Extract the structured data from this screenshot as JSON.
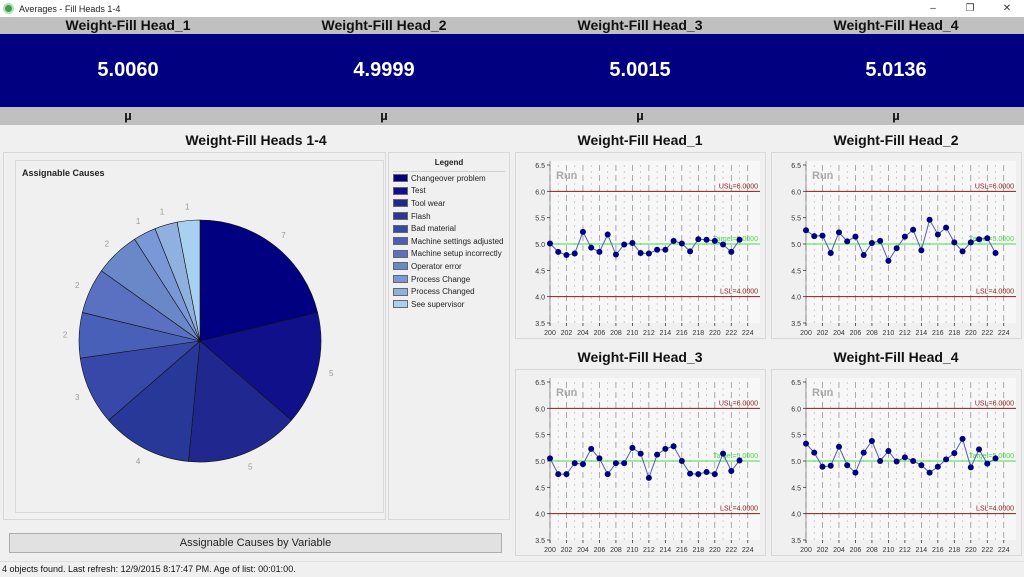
{
  "window": {
    "title": "Averages - Fill Heads 1-4",
    "controls": {
      "minimize": "–",
      "maximize": "❐",
      "close": "✕"
    }
  },
  "summary": {
    "heads": [
      {
        "name": "Weight-Fill Head_1",
        "value": "5.0060",
        "symbol": "µ"
      },
      {
        "name": "Weight-Fill Head_2",
        "value": "4.9999",
        "symbol": "µ"
      },
      {
        "name": "Weight-Fill Head_3",
        "value": "5.0015",
        "symbol": "µ"
      },
      {
        "name": "Weight-Fill Head_4",
        "value": "5.0136",
        "symbol": "µ"
      }
    ],
    "value_bg": "#000080"
  },
  "pie_title": "Weight-Fill Heads 1-4",
  "button_label": "Assignable Causes by Variable",
  "status": "4 objects found.  Last refresh: 12/9/2015 8:17:47 PM.  Age of list: 00:01:00.",
  "chart_data": [
    {
      "type": "pie",
      "title": "Assignable Causes",
      "legend_title": "Legend",
      "legend_position": "right",
      "categories": [
        "Changeover problem",
        "Test",
        "Tool wear",
        "Flash",
        "Bad material",
        "Machine settings adjusted",
        "Machine setup incorrectly",
        "Operator error",
        "Process Change",
        "Process Changed",
        "See supervisor"
      ],
      "values": [
        7,
        5,
        5,
        4,
        3,
        2,
        2,
        2,
        1,
        1,
        1
      ],
      "colors": [
        "#000080",
        "#10108a",
        "#202890",
        "#283898",
        "#3848a8",
        "#4860b8",
        "#5a70c0",
        "#6a88c8",
        "#7a98d8",
        "#90b0e0",
        "#a8d0f0"
      ]
    },
    {
      "type": "line",
      "title": "Weight-Fill Head_1",
      "annotation": "Run",
      "x": [
        200,
        201,
        202,
        203,
        204,
        205,
        206,
        207,
        208,
        209,
        210,
        211,
        212,
        213,
        214,
        215,
        216,
        217,
        218,
        219,
        220,
        221,
        222,
        223
      ],
      "values": [
        5.01,
        4.85,
        4.79,
        4.82,
        5.23,
        4.93,
        4.85,
        5.18,
        4.8,
        4.99,
        5.02,
        4.83,
        4.82,
        4.89,
        4.89,
        5.06,
        5.01,
        4.86,
        5.09,
        5.08,
        5.06,
        4.99,
        4.85,
        5.08
      ],
      "usl": 6.0,
      "lsl": 4.0,
      "target": 5.0,
      "usl_label": "USL=6.0000",
      "lsl_label": "LSL=4.0000",
      "target_label": "Target=5.0000",
      "xlim": [
        200,
        225
      ],
      "ylim": [
        3.5,
        6.5
      ],
      "xticks": [
        "200",
        "202",
        "204",
        "206",
        "208",
        "210",
        "212",
        "214",
        "216",
        "218",
        "220",
        "222",
        "224"
      ],
      "yticks": [
        "3.5",
        "4.0",
        "4.5",
        "5.0",
        "5.5",
        "6.0",
        "6.5"
      ]
    },
    {
      "type": "line",
      "title": "Weight-Fill Head_2",
      "annotation": "Run",
      "x": [
        200,
        201,
        202,
        203,
        204,
        205,
        206,
        207,
        208,
        209,
        210,
        211,
        212,
        213,
        214,
        215,
        216,
        217,
        218,
        219,
        220,
        221,
        222,
        223
      ],
      "values": [
        5.26,
        5.15,
        5.16,
        4.83,
        5.22,
        5.05,
        5.14,
        4.79,
        5.02,
        5.06,
        4.68,
        4.92,
        5.14,
        5.27,
        4.88,
        5.46,
        5.18,
        5.31,
        5.03,
        4.86,
        5.03,
        5.09,
        5.11,
        4.83
      ],
      "usl": 6.0,
      "lsl": 4.0,
      "target": 5.0,
      "usl_label": "USL=6.0000",
      "lsl_label": "LSL=4.0000",
      "target_label": "Target=5.0000",
      "xlim": [
        200,
        225
      ],
      "ylim": [
        3.5,
        6.5
      ],
      "xticks": [
        "200",
        "202",
        "204",
        "206",
        "208",
        "210",
        "212",
        "214",
        "216",
        "218",
        "220",
        "222",
        "224"
      ],
      "yticks": [
        "3.5",
        "4.0",
        "4.5",
        "5.0",
        "5.5",
        "6.0",
        "6.5"
      ]
    },
    {
      "type": "line",
      "title": "Weight-Fill Head_3",
      "annotation": "Run",
      "x": [
        200,
        201,
        202,
        203,
        204,
        205,
        206,
        207,
        208,
        209,
        210,
        211,
        212,
        213,
        214,
        215,
        216,
        217,
        218,
        219,
        220,
        221,
        222,
        223
      ],
      "values": [
        5.05,
        4.75,
        4.75,
        4.96,
        4.94,
        5.23,
        5.05,
        4.75,
        4.96,
        4.96,
        5.25,
        5.14,
        4.68,
        5.12,
        5.23,
        5.28,
        5.0,
        4.76,
        4.75,
        4.79,
        4.75,
        5.14,
        4.81,
        5.01
      ],
      "usl": 6.0,
      "lsl": 4.0,
      "target": 5.0,
      "usl_label": "USL=6.0000",
      "lsl_label": "LSL=4.0000",
      "target_label": "Target=5.0000",
      "xlim": [
        200,
        225
      ],
      "ylim": [
        3.5,
        6.5
      ],
      "xticks": [
        "200",
        "202",
        "204",
        "206",
        "208",
        "210",
        "212",
        "214",
        "216",
        "218",
        "220",
        "222",
        "224"
      ],
      "yticks": [
        "3.5",
        "4.0",
        "4.5",
        "5.0",
        "5.5",
        "6.0",
        "6.5"
      ]
    },
    {
      "type": "line",
      "title": "Weight-Fill Head_4",
      "annotation": "Run",
      "x": [
        200,
        201,
        202,
        203,
        204,
        205,
        206,
        207,
        208,
        209,
        210,
        211,
        212,
        213,
        214,
        215,
        216,
        217,
        218,
        219,
        220,
        221,
        222,
        223
      ],
      "values": [
        5.33,
        5.16,
        4.89,
        4.91,
        5.27,
        4.92,
        4.78,
        5.16,
        5.38,
        5.0,
        5.19,
        4.99,
        5.07,
        5.0,
        4.92,
        4.78,
        4.89,
        5.03,
        5.15,
        5.42,
        4.88,
        5.22,
        4.95,
        5.05
      ],
      "usl": 6.0,
      "lsl": 4.0,
      "target": 5.0,
      "usl_label": "USL=6.0000",
      "lsl_label": "LSL=4.0000",
      "target_label": "Target=5.0000",
      "xlim": [
        200,
        225
      ],
      "ylim": [
        3.5,
        6.5
      ],
      "xticks": [
        "200",
        "202",
        "204",
        "206",
        "208",
        "210",
        "212",
        "214",
        "216",
        "218",
        "220",
        "222",
        "224"
      ],
      "yticks": [
        "3.5",
        "4.0",
        "4.5",
        "5.0",
        "5.5",
        "6.0",
        "6.5"
      ]
    }
  ]
}
